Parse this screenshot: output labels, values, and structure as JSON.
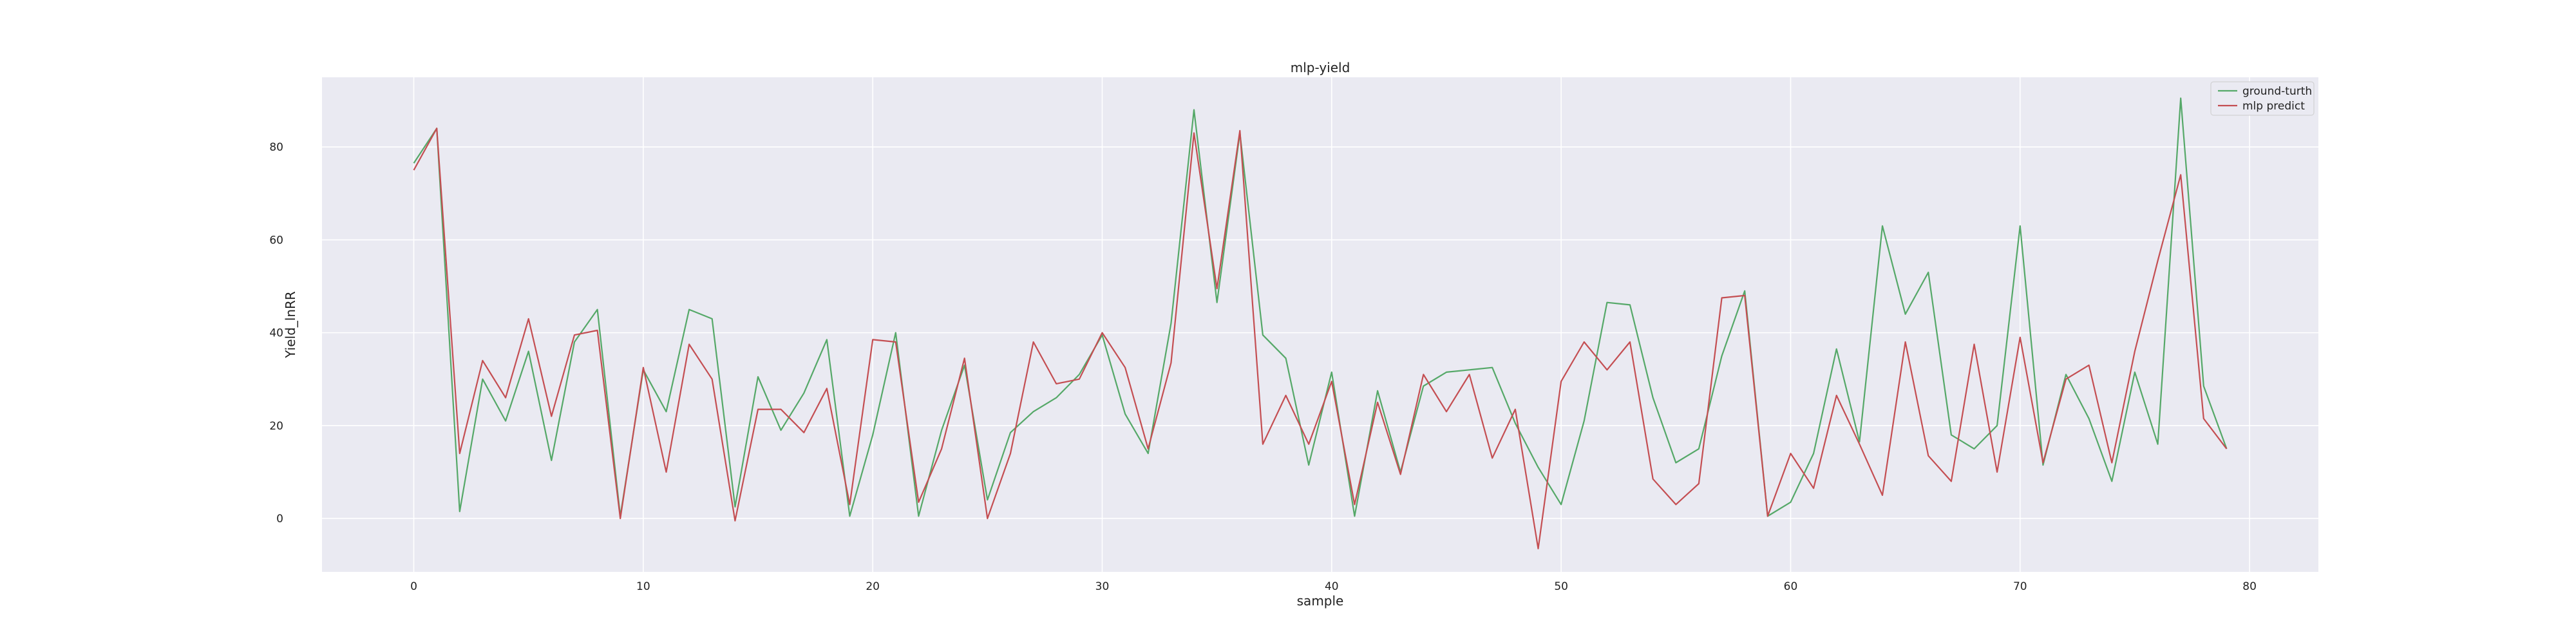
{
  "chart_data": {
    "type": "line",
    "title": "mlp-yield",
    "xlabel": "sample",
    "ylabel": "Yield_lnRR",
    "xlim": [
      -4,
      83
    ],
    "ylim": [
      -11.5,
      95
    ],
    "xticks": [
      0,
      10,
      20,
      30,
      40,
      50,
      60,
      70,
      80
    ],
    "yticks": [
      0,
      20,
      40,
      60,
      80
    ],
    "grid": true,
    "legend": "top-right",
    "series": [
      {
        "name": "ground-turth",
        "color": "#55a868",
        "x": [
          0,
          1,
          2,
          3,
          4,
          5,
          6,
          7,
          8,
          9,
          10,
          11,
          12,
          13,
          14,
          15,
          16,
          17,
          18,
          19,
          20,
          21,
          22,
          23,
          24,
          25,
          26,
          27,
          28,
          29,
          30,
          31,
          32,
          33,
          34,
          35,
          36,
          37,
          38,
          39,
          40,
          41,
          42,
          43,
          44,
          45,
          46,
          47,
          48,
          49,
          50,
          51,
          52,
          53,
          54,
          55,
          56,
          57,
          58,
          59,
          60,
          61,
          62,
          63,
          64,
          65,
          66,
          67,
          68,
          69,
          70,
          71,
          72,
          73,
          74,
          75,
          76,
          77,
          78,
          79
        ],
        "values": [
          76.5,
          84,
          1.5,
          30,
          21,
          36,
          12.5,
          38,
          45,
          0.5,
          32,
          23,
          45,
          43,
          2.5,
          30.5,
          19,
          27,
          38.5,
          0.5,
          18,
          40,
          0.5,
          19,
          33,
          4,
          18.5,
          23,
          26,
          31,
          39.5,
          22.5,
          14,
          42,
          88,
          46.5,
          83,
          39.5,
          34.5,
          11.5,
          31.5,
          0.5,
          27.5,
          10,
          28.5,
          31.5,
          32,
          32.5,
          20.5,
          11,
          3,
          21,
          46.5,
          46,
          26,
          12,
          15,
          35,
          49,
          0.5,
          3.5,
          14,
          36.5,
          16.5,
          63,
          44,
          53,
          18,
          15,
          20,
          63,
          11.5,
          31,
          21.5,
          8,
          31.5,
          16,
          90.5,
          28.5,
          15
        ]
      },
      {
        "name": "mlp predict",
        "color": "#c44e52",
        "x": [
          0,
          1,
          2,
          3,
          4,
          5,
          6,
          7,
          8,
          9,
          10,
          11,
          12,
          13,
          14,
          15,
          16,
          17,
          18,
          19,
          20,
          21,
          22,
          23,
          24,
          25,
          26,
          27,
          28,
          29,
          30,
          31,
          32,
          33,
          34,
          35,
          36,
          37,
          38,
          39,
          40,
          41,
          42,
          43,
          44,
          45,
          46,
          47,
          48,
          49,
          50,
          51,
          52,
          53,
          54,
          55,
          56,
          57,
          58,
          59,
          60,
          61,
          62,
          63,
          64,
          65,
          66,
          67,
          68,
          69,
          70,
          71,
          72,
          73,
          74,
          75,
          76,
          77,
          78,
          79
        ],
        "values": [
          75,
          84,
          14,
          34,
          26,
          43,
          22,
          39.5,
          40.5,
          0,
          32.5,
          10,
          37.5,
          30,
          -0.5,
          23.5,
          23.5,
          18.5,
          28,
          3,
          38.5,
          38,
          3.5,
          15,
          34.5,
          0,
          14,
          38,
          29,
          30,
          40,
          32.5,
          15,
          33.5,
          83,
          49.5,
          83.5,
          16,
          26.5,
          16,
          29.5,
          3,
          25,
          9.5,
          31,
          23,
          31,
          13,
          23.5,
          -6.5,
          29.5,
          38,
          32,
          38,
          8.5,
          3,
          7.5,
          47.5,
          48,
          0.5,
          14,
          6.5,
          26.5,
          16,
          5,
          38,
          13.5,
          8,
          37.5,
          10,
          39,
          12,
          30,
          33,
          12,
          36,
          55.5,
          74,
          21.5,
          15
        ]
      }
    ]
  }
}
